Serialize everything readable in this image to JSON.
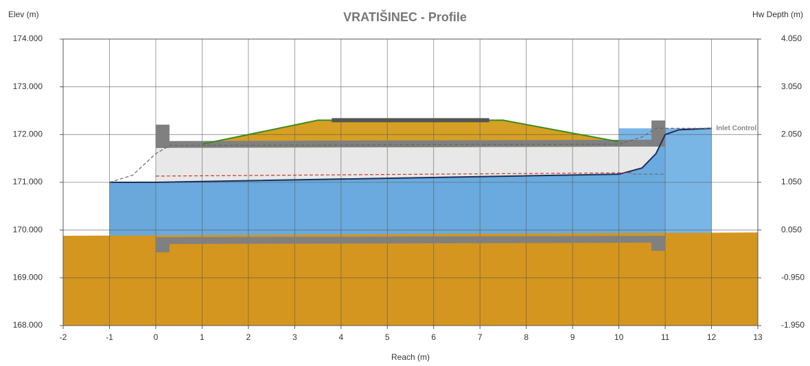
{
  "chart_data": {
    "type": "profile",
    "title": "VRATIŠINEC - Profile",
    "y_label": "Elev (m)",
    "y2_label": "Hw Depth (m)",
    "x_label": "Reach (m)",
    "xlim": [
      -2,
      13
    ],
    "xticks": [
      -2,
      -1,
      0,
      1,
      2,
      3,
      4,
      5,
      6,
      7,
      8,
      9,
      10,
      11,
      12,
      13
    ],
    "ylim": [
      168,
      174
    ],
    "yticks": [
      {
        "value": 168,
        "label": "168.000"
      },
      {
        "value": 169,
        "label": "169.000"
      },
      {
        "value": 170,
        "label": "170.000"
      },
      {
        "value": 171,
        "label": "171.000"
      },
      {
        "value": 172,
        "label": "172.000"
      },
      {
        "value": 173,
        "label": "173.000"
      },
      {
        "value": 174,
        "label": "174.000"
      }
    ],
    "y2lim": [
      -1.95,
      4.05
    ],
    "y2ticks": [
      {
        "value": -1.95,
        "label": "-1.950"
      },
      {
        "value": -0.95,
        "label": "-0.950"
      },
      {
        "value": 0.05,
        "label": "0.050"
      },
      {
        "value": 1.05,
        "label": "1.050"
      },
      {
        "value": 2.05,
        "label": "2.050"
      },
      {
        "value": 3.05,
        "label": "3.050"
      },
      {
        "value": 4.05,
        "label": "4.050"
      }
    ],
    "grid": true,
    "series": [
      {
        "kind": "area",
        "color": "#79b6e6",
        "x": [
          10,
          12
        ],
        "values": [
          172.13,
          172.13
        ]
      },
      {
        "kind": "area",
        "color": "#6aa8dc",
        "x": [
          -1,
          0
        ],
        "values": [
          171.0,
          171.0
        ]
      },
      {
        "kind": "area",
        "color": "#d6a024",
        "edge": "#3a8a1e",
        "x": [
          1,
          3.5,
          7.5,
          10
        ],
        "values": [
          171.8,
          172.3,
          172.3,
          171.85
        ]
      },
      {
        "kind": "culvert",
        "color": "#808080",
        "x": [
          0,
          11
        ],
        "invert": [
          169.85,
          169.88
        ],
        "crown": [
          171.72,
          171.75
        ]
      },
      {
        "kind": "area",
        "color": "#6aaade",
        "x": [
          0,
          10,
          10.5,
          10.8,
          11
        ],
        "values": [
          171.0,
          171.17,
          171.3,
          171.6,
          172.0
        ]
      },
      {
        "kind": "area",
        "color": "#d4961e",
        "x": [
          -2,
          13
        ],
        "values": [
          169.88,
          169.95
        ]
      },
      {
        "kind": "line",
        "color": "#555555",
        "width": 6,
        "x": [
          3.8,
          7.2
        ],
        "values": [
          172.3,
          172.3
        ]
      },
      {
        "kind": "line",
        "color": "#1f2d5a",
        "width": 2,
        "x": [
          -1,
          0,
          10,
          10.5,
          10.8,
          11,
          11.3,
          12
        ],
        "values": [
          171.0,
          171.0,
          171.17,
          171.3,
          171.6,
          172.0,
          172.1,
          172.13
        ]
      },
      {
        "kind": "line",
        "color": "#666666",
        "width": 1.2,
        "dash": true,
        "x": [
          -1,
          -0.5,
          0,
          0.3,
          10,
          10.5,
          10.8,
          12
        ],
        "values": [
          171.0,
          171.15,
          171.6,
          171.77,
          171.8,
          171.95,
          172.13,
          172.13
        ]
      },
      {
        "kind": "line",
        "color": "#c0392b",
        "width": 1.2,
        "dash": true,
        "x": [
          0,
          10.3
        ],
        "values": [
          171.13,
          171.2
        ]
      },
      {
        "kind": "line",
        "color": "#666666",
        "width": 1,
        "dash": true,
        "x": [
          10.3,
          11
        ],
        "values": [
          171.17,
          171.17
        ]
      }
    ],
    "annotations": [
      {
        "text": "Inlet Control",
        "x": 12.1,
        "y": 172.13
      }
    ]
  }
}
